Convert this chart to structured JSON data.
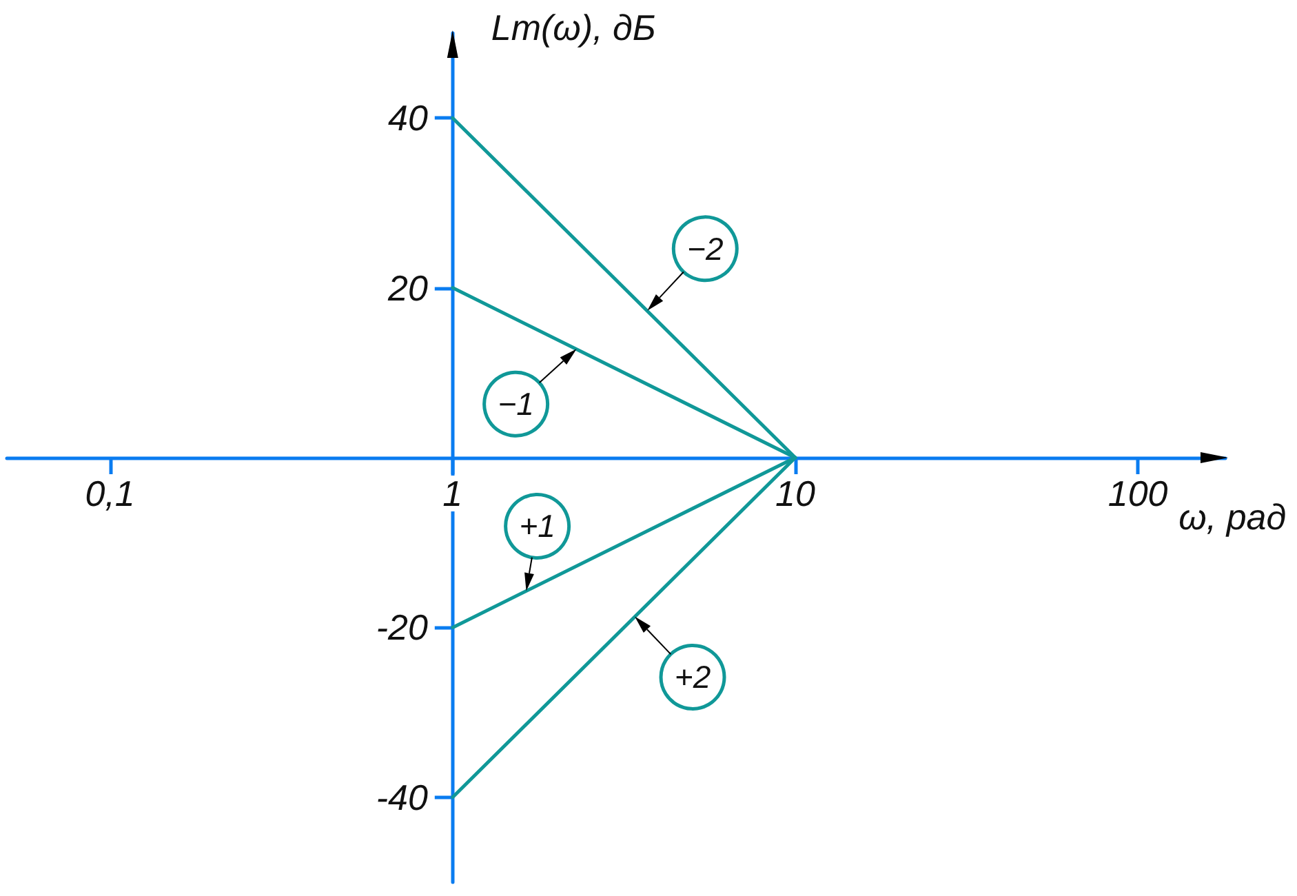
{
  "chart_data": {
    "type": "line",
    "xlabel": "ω, рад",
    "ylabel": "Lm(ω), дБ",
    "log": "x",
    "xlim": [
      0.05,
      180
    ],
    "xticks": [
      {
        "value": 0.1,
        "label": "0,1"
      },
      1,
      10,
      100
    ],
    "ylim": [
      -50,
      50
    ],
    "yticks": [
      -40,
      -20,
      20,
      40
    ],
    "marker": "none",
    "line_style": "solid",
    "x": [
      1,
      10
    ],
    "series": [
      {
        "color": "#109898",
        "values": [
          40,
          0
        ]
      },
      {
        "color": "#109898",
        "values": [
          20,
          0
        ]
      },
      {
        "color": "#109898",
        "values": [
          -20,
          0
        ]
      },
      {
        "color": "#109898",
        "values": [
          -40,
          0
        ]
      }
    ],
    "annotations": [
      {
        "text": "−2",
        "x": 3.7,
        "y": 17.3
      },
      {
        "text": "−1",
        "x": 2.3,
        "y": 12.8
      },
      {
        "text": "+1",
        "x": 1.64,
        "y": -15.7
      },
      {
        "text": "+2",
        "x": 3.4,
        "y": -18.7
      }
    ]
  }
}
